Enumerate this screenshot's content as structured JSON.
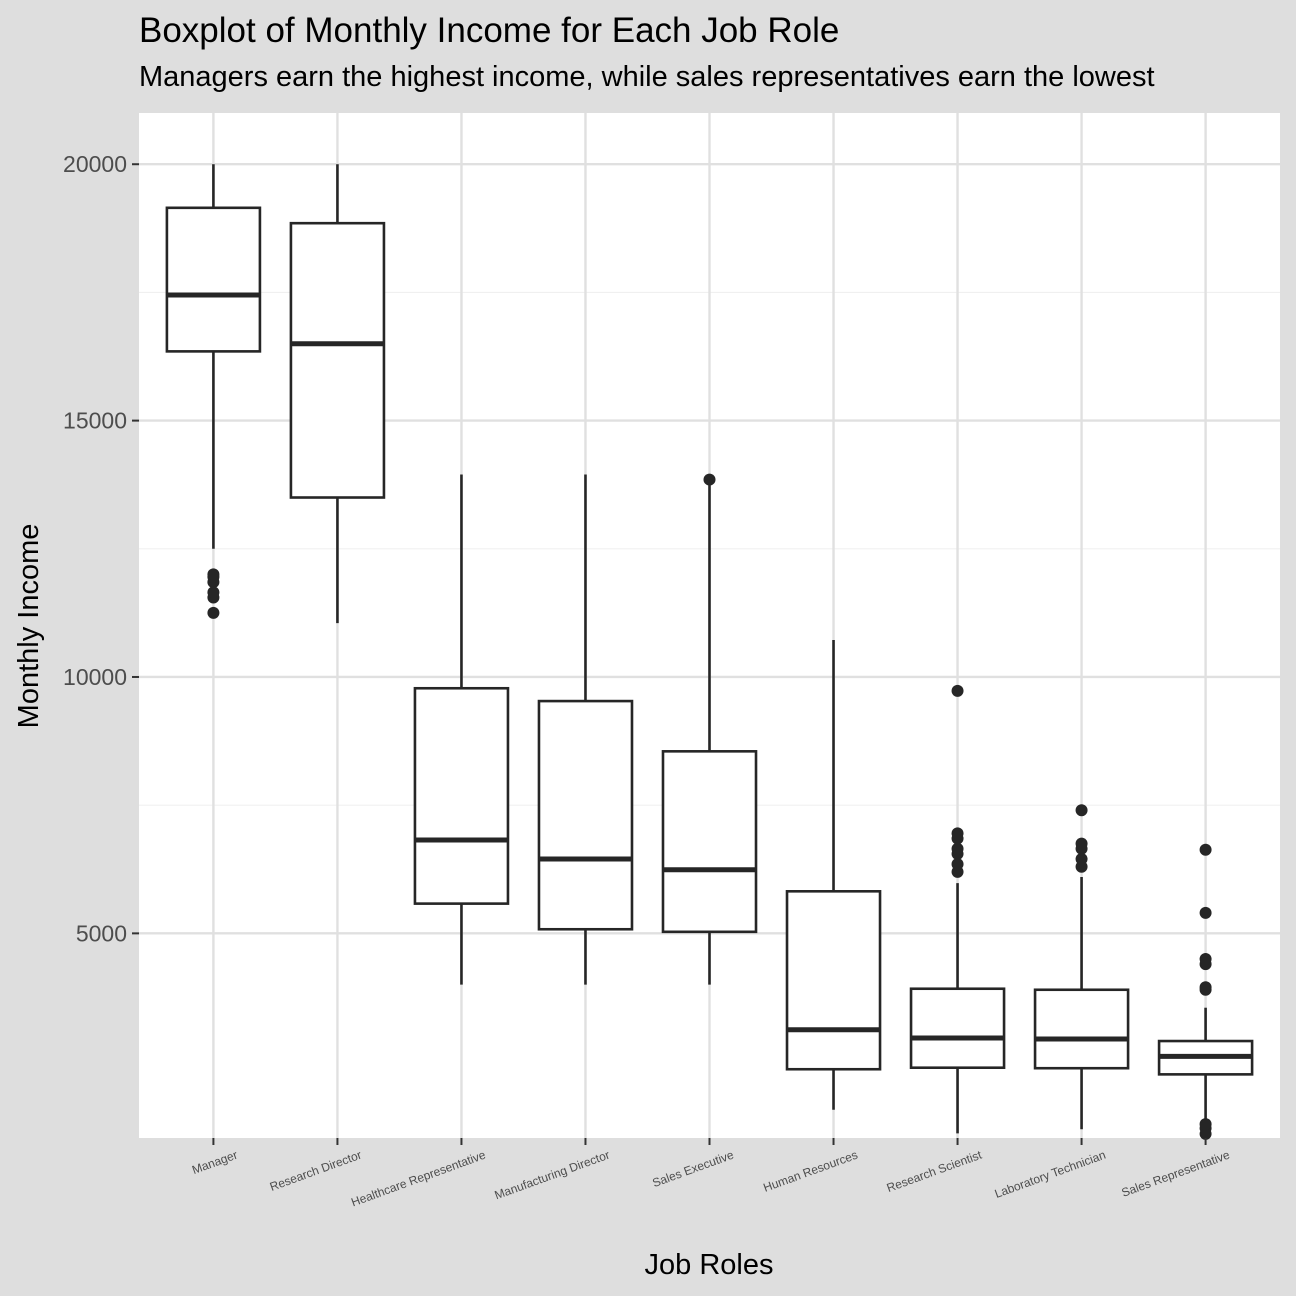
{
  "chart_data": {
    "type": "box",
    "title": "Boxplot of Monthly Income for Each Job Role",
    "subtitle": "Managers earn the highest income, while sales representatives earn the lowest",
    "xlabel": "Job Roles",
    "ylabel": "Monthly Income",
    "ylim": [
      1009,
      20999
    ],
    "yticks": [
      5000,
      10000,
      15000,
      20000
    ],
    "grid": true,
    "categories": [
      "Manager",
      "Research Director",
      "Healthcare Representative",
      "Manufacturing Director",
      "Sales Executive",
      "Human Resources",
      "Research Scientist",
      "Laboratory Technician",
      "Sales Representative"
    ],
    "boxes": [
      {
        "category": "Manager",
        "whisker_low": 12500,
        "q1": 16350,
        "median": 17450,
        "q3": 19150,
        "whisker_high": 20000,
        "outliers": [
          11250,
          11550,
          11650,
          11850,
          11950,
          12000
        ]
      },
      {
        "category": "Research Director",
        "whisker_low": 11050,
        "q1": 13500,
        "median": 16500,
        "q3": 18850,
        "whisker_high": 20000,
        "outliers": []
      },
      {
        "category": "Healthcare Representative",
        "whisker_low": 4000,
        "q1": 5580,
        "median": 6820,
        "q3": 9780,
        "whisker_high": 13950,
        "outliers": []
      },
      {
        "category": "Manufacturing Director",
        "whisker_low": 4000,
        "q1": 5080,
        "median": 6450,
        "q3": 9530,
        "whisker_high": 13950,
        "outliers": []
      },
      {
        "category": "Sales Executive",
        "whisker_low": 4000,
        "q1": 5030,
        "median": 6240,
        "q3": 8550,
        "whisker_high": 13850,
        "outliers": [
          13850
        ]
      },
      {
        "category": "Human Resources",
        "whisker_low": 1560,
        "q1": 2350,
        "median": 3120,
        "q3": 5820,
        "whisker_high": 10720,
        "outliers": []
      },
      {
        "category": "Research Scientist",
        "whisker_low": 1100,
        "q1": 2380,
        "median": 2960,
        "q3": 3920,
        "whisker_high": 5980,
        "outliers": [
          6200,
          6350,
          6550,
          6650,
          6850,
          6950,
          9730
        ]
      },
      {
        "category": "Laboratory Technician",
        "whisker_low": 1180,
        "q1": 2370,
        "median": 2940,
        "q3": 3900,
        "whisker_high": 6100,
        "outliers": [
          6300,
          6450,
          6650,
          6750,
          7400
        ]
      },
      {
        "category": "Sales Representative",
        "whisker_low": 1350,
        "q1": 2250,
        "median": 2600,
        "q3": 2900,
        "whisker_high": 3550,
        "outliers": [
          1090,
          1200,
          1280,
          3900,
          3950,
          4400,
          4500,
          5400,
          6630
        ]
      }
    ]
  }
}
